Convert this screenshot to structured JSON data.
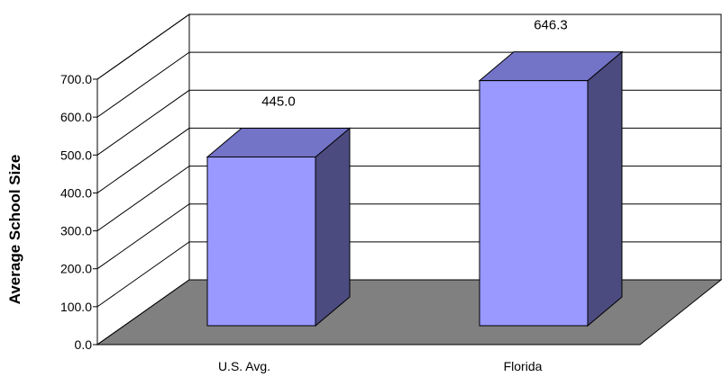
{
  "chart_data": {
    "type": "bar",
    "categories": [
      "U.S. Avg.",
      "Florida"
    ],
    "values": [
      445.0,
      646.3
    ],
    "value_labels": [
      "445.0",
      "646.3"
    ],
    "ylabel": "Average School Size",
    "ylim": [
      0,
      700
    ],
    "yticks": [
      "0.0",
      "100.0",
      "200.0",
      "300.0",
      "400.0",
      "500.0",
      "600.0",
      "700.0"
    ],
    "grid": true,
    "legend": "none",
    "colors": {
      "bar_front": "#9999ff",
      "bar_top": "#7373c8",
      "bar_side": "#4b4b80",
      "floor": "#808080",
      "gridline": "#000000",
      "wall": "#ffffff"
    }
  }
}
